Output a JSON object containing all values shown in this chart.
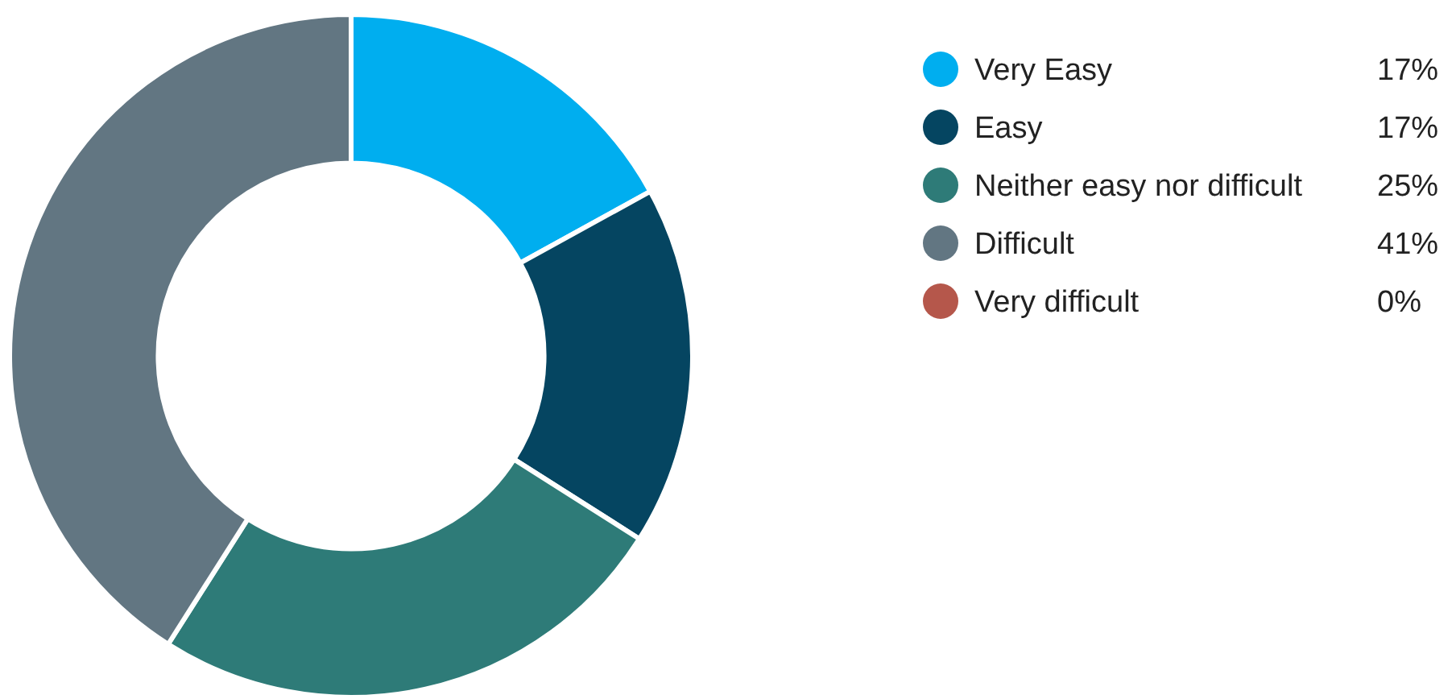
{
  "chart_data": {
    "type": "donut",
    "categories": [
      "Very Easy",
      "Easy",
      "Neither easy nor difficult",
      "Difficult",
      "Very difficult"
    ],
    "values": [
      17,
      17,
      25,
      41,
      0
    ],
    "colors": [
      "#00aeef",
      "#054561",
      "#2e7b78",
      "#627682",
      "#b5574b"
    ],
    "value_labels": [
      "17%",
      "17%",
      "25%",
      "41%",
      "0%"
    ],
    "legend": "right"
  }
}
